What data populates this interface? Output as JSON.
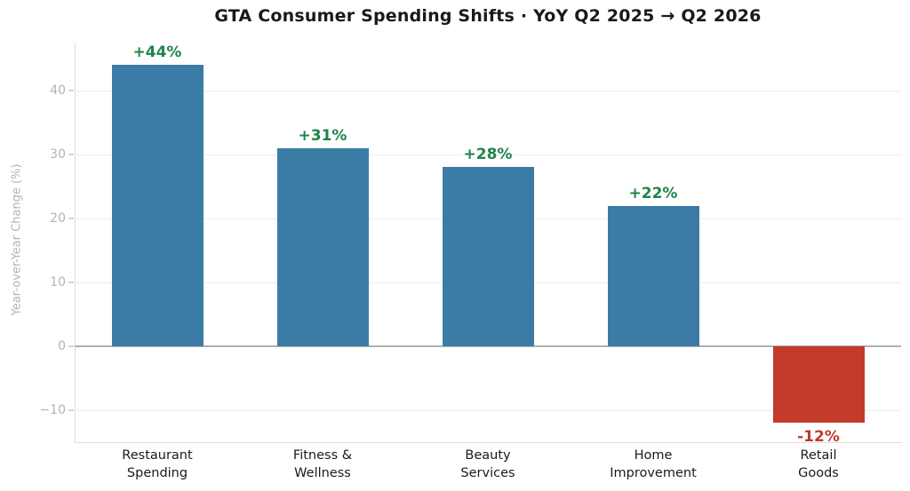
{
  "chart_data": {
    "type": "bar",
    "title": "GTA Consumer Spending Shifts · YoY Q2 2025 → Q2 2026",
    "ylabel": "Year-over-Year Change (%)",
    "xlabel": "",
    "categories": [
      "Restaurant\nSpending",
      "Fitness &\nWellness",
      "Beauty\nServices",
      "Home\nImprovement",
      "Retail\nGoods"
    ],
    "values": [
      44,
      31,
      28,
      22,
      -12
    ],
    "bar_labels": [
      "+44%",
      "+31%",
      "+28%",
      "+22%",
      "-12%"
    ],
    "yticks": [
      40,
      30,
      20,
      10,
      0,
      -10
    ],
    "ytick_labels": [
      "40",
      "30",
      "20",
      "10",
      "0",
      "−10"
    ],
    "ylim": [
      -15,
      47.5
    ],
    "grid": "horizontal",
    "legend": "none"
  },
  "colors": {
    "positive_bar": "#3a7ca6",
    "negative_bar": "#c23b2b",
    "positive_label": "#1e8449",
    "negative_label": "#c0392b",
    "grid": "#ececec",
    "zero_line": "#b0b0b0",
    "axis_spine": "#dcdcdc",
    "tick_text": "#b3b3b3",
    "title_text": "#1a1a1a",
    "category_text": "#1a1a1a"
  }
}
